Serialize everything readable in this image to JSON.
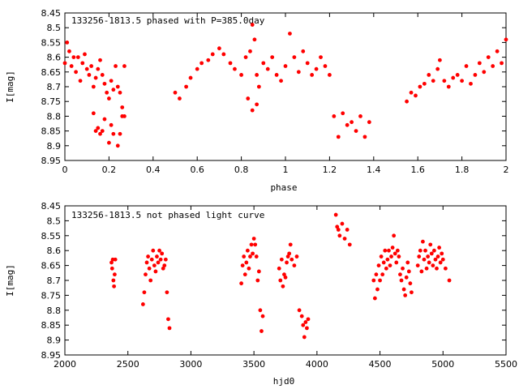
{
  "chart_data": [
    {
      "type": "scatter",
      "title": "133256-1813.5 phased with P=385.0day",
      "xlabel": "phase",
      "ylabel": "I[mag]",
      "xlim": [
        0,
        2
      ],
      "ylim": [
        8.95,
        8.45
      ],
      "y_inverted": true,
      "grid": false,
      "marker_color": "#ff0000",
      "x_ticks": [
        "0",
        "0.2",
        "0.4",
        "0.6",
        "0.8",
        "1",
        "1.2",
        "1.4",
        "1.6",
        "1.8",
        "2"
      ],
      "y_ticks": [
        "8.45",
        "8.5",
        "8.55",
        "8.6",
        "8.65",
        "8.7",
        "8.75",
        "8.8",
        "8.85",
        "8.9",
        "8.95"
      ],
      "series": [
        {
          "x": [
            0.0,
            0.01,
            0.02,
            0.03,
            0.04,
            0.05,
            0.06,
            0.07,
            0.08,
            0.09,
            0.1,
            0.11,
            0.12,
            0.13,
            0.14,
            0.15,
            0.16,
            0.17,
            0.18,
            0.19,
            0.2,
            0.21,
            0.22,
            0.23,
            0.24,
            0.25,
            0.26,
            0.27,
            0.13,
            0.14,
            0.15,
            0.16,
            0.17,
            0.18,
            0.2,
            0.21,
            0.22,
            0.24,
            0.25,
            0.26,
            0.27,
            0.5,
            0.52,
            0.55,
            0.57,
            0.6,
            0.62,
            0.65,
            0.67,
            0.7,
            0.72,
            0.75,
            0.77,
            0.8,
            0.82,
            0.84,
            0.85,
            0.86,
            0.87,
            0.88,
            0.9,
            0.92,
            0.94,
            0.96,
            0.98,
            1.0,
            1.02,
            1.04,
            1.06,
            1.08,
            1.1,
            1.12,
            1.14,
            1.16,
            1.18,
            1.2,
            0.83,
            0.85,
            0.87,
            1.22,
            1.24,
            1.26,
            1.28,
            1.3,
            1.32,
            1.34,
            1.36,
            1.38,
            1.55,
            1.57,
            1.59,
            1.61,
            1.63,
            1.65,
            1.67,
            1.69,
            1.7,
            1.72,
            1.74,
            1.76,
            1.78,
            1.8,
            1.82,
            1.84,
            1.86,
            1.88,
            1.9,
            1.92,
            1.94,
            1.96,
            1.98,
            2.0
          ],
          "y": [
            8.62,
            8.55,
            8.58,
            8.63,
            8.6,
            8.65,
            8.6,
            8.68,
            8.62,
            8.59,
            8.64,
            8.66,
            8.63,
            8.7,
            8.67,
            8.64,
            8.61,
            8.66,
            8.69,
            8.72,
            8.74,
            8.68,
            8.71,
            8.63,
            8.7,
            8.72,
            8.8,
            8.63,
            8.79,
            8.85,
            8.84,
            8.86,
            8.85,
            8.81,
            8.89,
            8.83,
            8.86,
            8.9,
            8.86,
            8.77,
            8.8,
            8.72,
            8.74,
            8.7,
            8.67,
            8.64,
            8.62,
            8.61,
            8.59,
            8.57,
            8.59,
            8.62,
            8.64,
            8.66,
            8.6,
            8.58,
            8.49,
            8.54,
            8.66,
            8.7,
            8.62,
            8.64,
            8.6,
            8.66,
            8.68,
            8.63,
            8.52,
            8.6,
            8.65,
            8.58,
            8.62,
            8.66,
            8.64,
            8.6,
            8.63,
            8.66,
            8.74,
            8.78,
            8.76,
            8.8,
            8.87,
            8.79,
            8.83,
            8.82,
            8.85,
            8.8,
            8.87,
            8.82,
            8.75,
            8.72,
            8.73,
            8.7,
            8.69,
            8.66,
            8.68,
            8.64,
            8.61,
            8.68,
            8.7,
            8.67,
            8.66,
            8.68,
            8.63,
            8.69,
            8.66,
            8.62,
            8.65,
            8.6,
            8.63,
            8.58,
            8.62,
            8.54
          ]
        }
      ]
    },
    {
      "type": "scatter",
      "title": "133256-1813.5 not phased light curve",
      "xlabel": "hjd0",
      "ylabel": "I[mag]",
      "xlim": [
        2000,
        5500
      ],
      "ylim": [
        8.95,
        8.45
      ],
      "y_inverted": true,
      "grid": false,
      "marker_color": "#ff0000",
      "x_ticks": [
        "2000",
        "2500",
        "3000",
        "3500",
        "4000",
        "4500",
        "5000",
        "5500"
      ],
      "y_ticks": [
        "8.45",
        "8.5",
        "8.55",
        "8.6",
        "8.65",
        "8.7",
        "8.75",
        "8.8",
        "8.85",
        "8.9",
        "8.95"
      ],
      "series": [
        {
          "x": [
            2370,
            2375,
            2380,
            2385,
            2390,
            2395,
            2400,
            2620,
            2630,
            2640,
            2650,
            2660,
            2670,
            2680,
            2690,
            2700,
            2710,
            2720,
            2730,
            2740,
            2750,
            2760,
            2770,
            2780,
            2790,
            2800,
            2810,
            2820,
            2830,
            3400,
            3410,
            3420,
            3430,
            3440,
            3450,
            3460,
            3470,
            3480,
            3490,
            3500,
            3510,
            3520,
            3530,
            3540,
            3550,
            3560,
            3570,
            3700,
            3710,
            3720,
            3730,
            3740,
            3750,
            3760,
            3770,
            3780,
            3790,
            3800,
            3820,
            3840,
            3860,
            3880,
            3890,
            3900,
            3910,
            3920,
            3930,
            4150,
            4160,
            4170,
            4180,
            4200,
            4220,
            4240,
            4260,
            4450,
            4460,
            4470,
            4480,
            4490,
            4500,
            4510,
            4520,
            4530,
            4540,
            4550,
            4560,
            4570,
            4580,
            4590,
            4600,
            4610,
            4620,
            4630,
            4640,
            4650,
            4660,
            4670,
            4680,
            4690,
            4700,
            4710,
            4720,
            4730,
            4740,
            4750,
            4800,
            4810,
            4820,
            4830,
            4840,
            4850,
            4860,
            4870,
            4880,
            4890,
            4900,
            4910,
            4920,
            4930,
            4940,
            4950,
            4960,
            4970,
            4980,
            4990,
            5000,
            5020,
            5050
          ],
          "y": [
            8.64,
            8.66,
            8.63,
            8.7,
            8.72,
            8.68,
            8.63,
            8.78,
            8.74,
            8.68,
            8.64,
            8.62,
            8.66,
            8.7,
            8.63,
            8.6,
            8.65,
            8.67,
            8.62,
            8.64,
            8.6,
            8.63,
            8.61,
            8.66,
            8.65,
            8.63,
            8.74,
            8.83,
            8.86,
            8.71,
            8.65,
            8.62,
            8.68,
            8.64,
            8.6,
            8.66,
            8.62,
            8.58,
            8.61,
            8.56,
            8.58,
            8.62,
            8.7,
            8.67,
            8.8,
            8.87,
            8.82,
            8.66,
            8.7,
            8.63,
            8.72,
            8.68,
            8.69,
            8.64,
            8.62,
            8.61,
            8.58,
            8.63,
            8.65,
            8.62,
            8.8,
            8.82,
            8.85,
            8.89,
            8.84,
            8.86,
            8.83,
            8.48,
            8.52,
            8.53,
            8.55,
            8.51,
            8.56,
            8.53,
            8.58,
            8.7,
            8.76,
            8.68,
            8.73,
            8.65,
            8.7,
            8.62,
            8.68,
            8.64,
            8.6,
            8.66,
            8.63,
            8.6,
            8.65,
            8.62,
            8.59,
            8.55,
            8.61,
            8.64,
            8.6,
            8.62,
            8.68,
            8.7,
            8.66,
            8.73,
            8.75,
            8.69,
            8.64,
            8.67,
            8.71,
            8.74,
            8.65,
            8.62,
            8.6,
            8.67,
            8.57,
            8.63,
            8.6,
            8.66,
            8.62,
            8.64,
            8.58,
            8.61,
            8.65,
            8.6,
            8.63,
            8.66,
            8.62,
            8.59,
            8.64,
            8.61,
            8.63,
            8.66,
            8.7
          ]
        }
      ]
    }
  ]
}
